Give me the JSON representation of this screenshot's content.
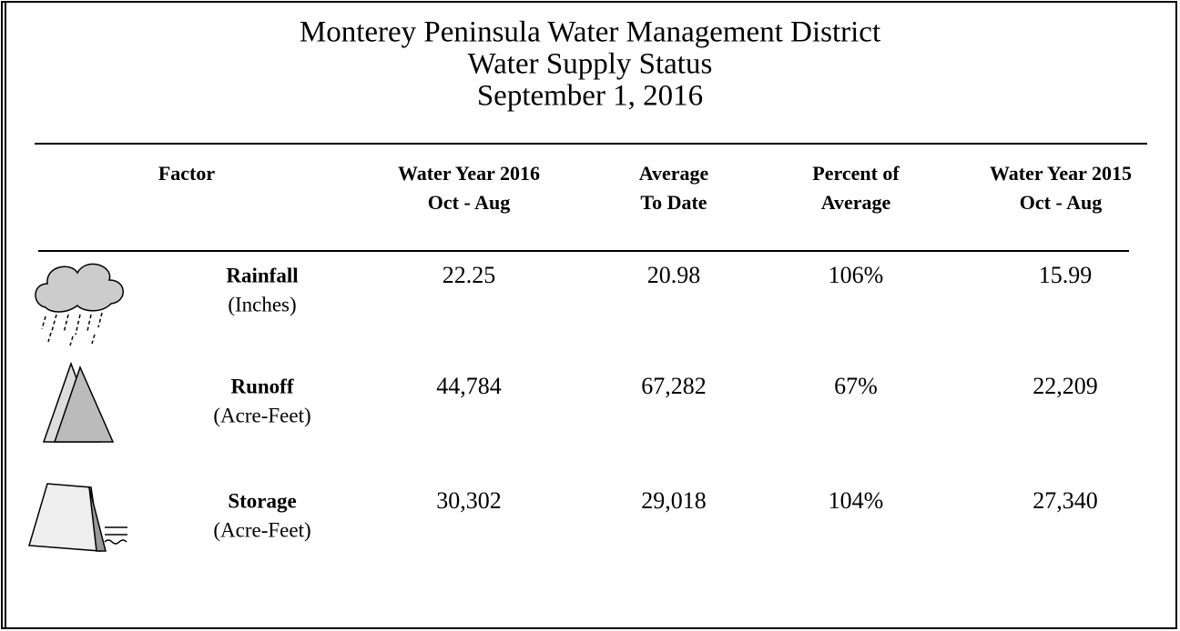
{
  "header": {
    "title_lines": [
      "Monterey Peninsula Water Management District",
      "Water Supply Status",
      "September 1, 2016"
    ]
  },
  "table": {
    "columns": [
      [
        "Factor"
      ],
      [
        "Water Year 2016",
        "Oct - Aug"
      ],
      [
        "Average",
        "To Date"
      ],
      [
        "Percent of",
        "Average"
      ],
      [
        "Water Year 2015",
        "Oct - Aug"
      ]
    ],
    "rows": [
      {
        "factor": "Rainfall",
        "unit": "(Inches)",
        "values": [
          "22.25",
          "20.98",
          "106%",
          "15.99"
        ]
      },
      {
        "factor": "Runoff",
        "unit": "(Acre-Feet)",
        "values": [
          "44,784",
          "67,282",
          "67%",
          "22,209"
        ]
      },
      {
        "factor": "Storage",
        "unit": "(Acre-Feet)",
        "values": [
          "30,302",
          "29,018",
          "104%",
          "27,340"
        ]
      }
    ]
  }
}
